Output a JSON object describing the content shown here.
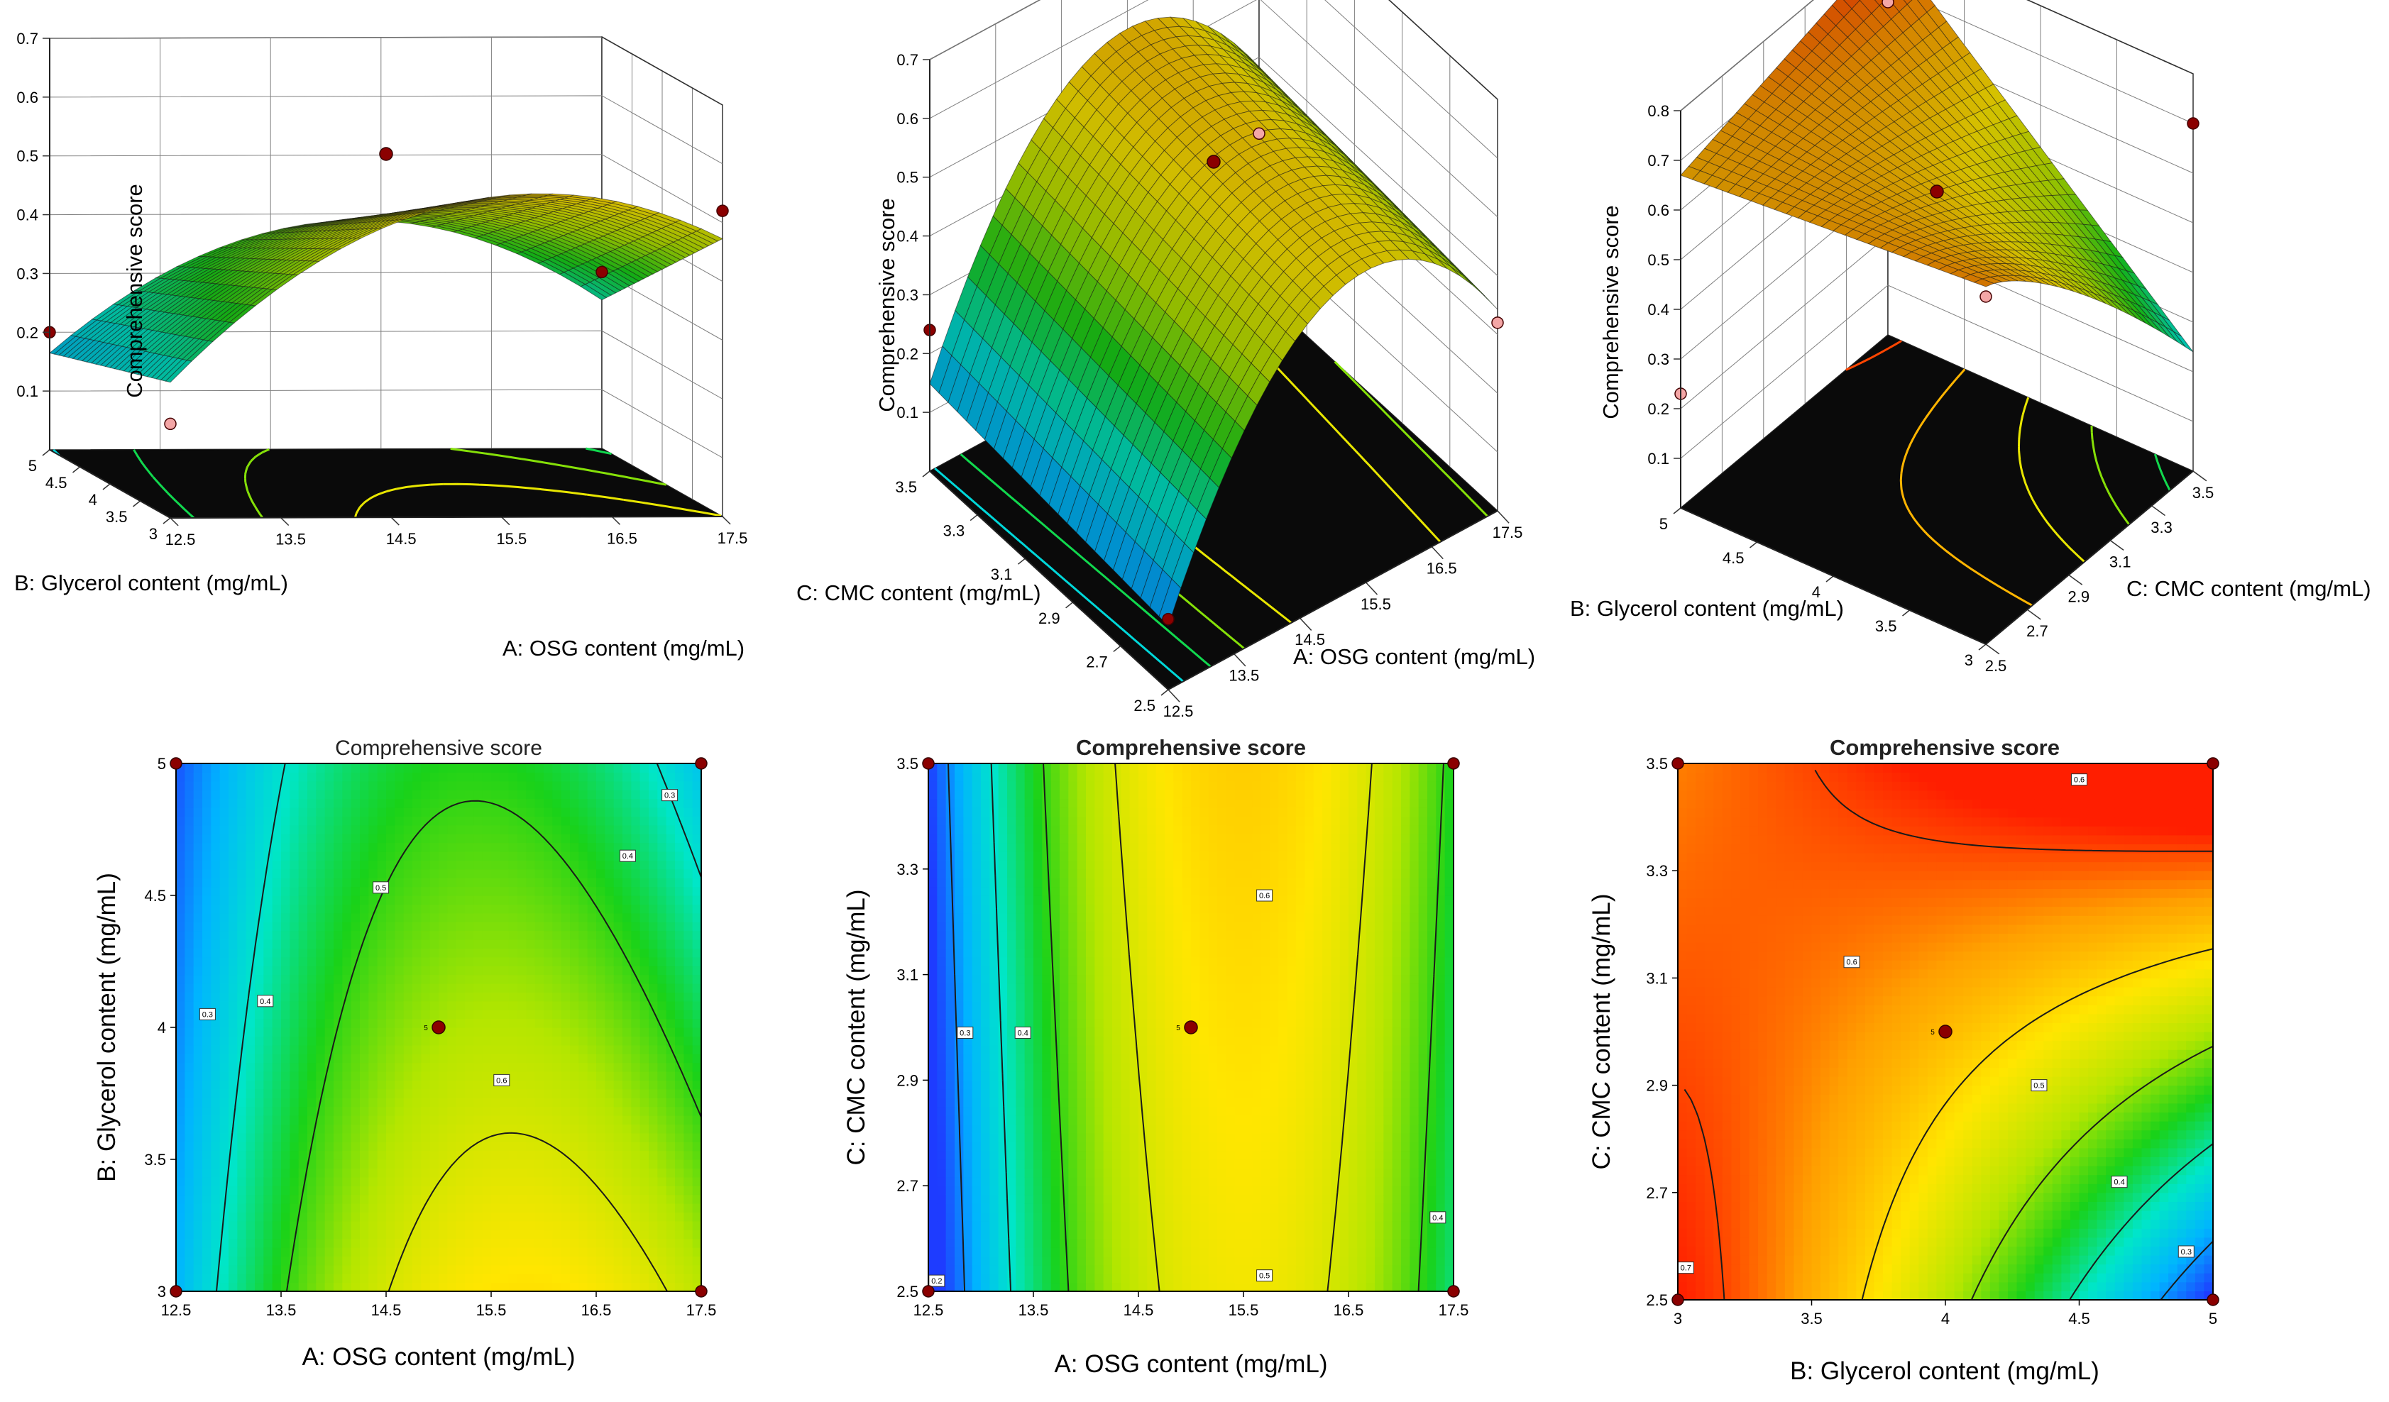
{
  "figure": {
    "colors": {
      "ramp": [
        "#1e3cff",
        "#00b4ff",
        "#00e6c8",
        "#19d219",
        "#b4e600",
        "#ffe600",
        "#ffa000",
        "#ff1e00"
      ],
      "axis": "#000000",
      "grid": "#7f7f7f",
      "contour": "#1a1a1a",
      "design_point": "#8b0000",
      "floor": "#0a0a0a",
      "cube_back": "#ffffff"
    }
  },
  "chart_data": [
    {
      "id": "surface-a-b",
      "type": "surface3d",
      "zlabel": "Comprehensive score",
      "xlabel": "A: OSG content (mg/mL)",
      "ylabel": "B: Glycerol content (mg/mL)",
      "x_ticks": [
        "12.5",
        "13.5",
        "14.5",
        "15.5",
        "16.5",
        "17.5"
      ],
      "y_ticks": [
        "3",
        "3.5",
        "4",
        "4.5",
        "5"
      ],
      "z_ticks": [
        "0.1",
        "0.2",
        "0.3",
        "0.4",
        "0.5",
        "0.6",
        "0.7"
      ],
      "x_range": [
        12.5,
        17.5
      ],
      "y_range": [
        3,
        5
      ],
      "z_range": [
        0,
        0.7
      ],
      "view": "x-axis front-right, y-axis front-left",
      "center_point": {
        "x": 15,
        "y": 4,
        "z": 0.56
      },
      "corner_points": [
        {
          "x": 12.5,
          "y": 3,
          "z": 0.16
        },
        {
          "x": 12.5,
          "y": 5,
          "z": 0.2
        },
        {
          "x": 17.5,
          "y": 3,
          "z": 0.52
        },
        {
          "x": 17.5,
          "y": 5,
          "z": 0.3
        }
      ]
    },
    {
      "id": "surface-a-c",
      "type": "surface3d",
      "zlabel": "Comprehensive score",
      "xlabel": "A: OSG content (mg/mL)",
      "ylabel": "C: CMC content (mg/mL)",
      "x_ticks": [
        "12.5",
        "13.5",
        "14.5",
        "15.5",
        "16.5",
        "17.5"
      ],
      "y_ticks": [
        "2.5",
        "2.7",
        "2.9",
        "3.1",
        "3.3",
        "3.5"
      ],
      "z_ticks": [
        "0.1",
        "0.2",
        "0.3",
        "0.4",
        "0.5",
        "0.6",
        "0.7"
      ],
      "x_range": [
        12.5,
        17.5
      ],
      "y_range": [
        2.5,
        3.5
      ],
      "z_range": [
        0,
        0.7
      ],
      "view": "x-axis front-right, y-axis front-left",
      "center_point": {
        "x": 15,
        "y": 3,
        "z": 0.56
      },
      "corner_points": [
        {
          "x": 12.5,
          "y": 2.5,
          "z": 0.12
        },
        {
          "x": 12.5,
          "y": 3.5,
          "z": 0.24
        },
        {
          "x": 17.5,
          "y": 2.5,
          "z": 0.32
        },
        {
          "x": 17.5,
          "y": 3.5,
          "z": 0.27
        }
      ]
    },
    {
      "id": "surface-b-c",
      "type": "surface3d",
      "zlabel": "Comprehensive score",
      "xlabel": "C: CMC content (mg/mL)",
      "ylabel": "B: Glycerol content (mg/mL)",
      "x_ticks": [
        "2.5",
        "2.7",
        "2.9",
        "3.1",
        "3.3",
        "3.5"
      ],
      "y_ticks": [
        "3",
        "3.5",
        "4",
        "4.5",
        "5"
      ],
      "z_ticks": [
        "0.1",
        "0.2",
        "0.3",
        "0.4",
        "0.5",
        "0.6",
        "0.7",
        "0.8"
      ],
      "x_range": [
        2.5,
        3.5
      ],
      "y_range": [
        3,
        5
      ],
      "z_range": [
        0,
        0.8
      ],
      "view": "x-axis front-right (reversed), y-axis front-left (reversed)",
      "center_point": {
        "x": 3,
        "y": 4,
        "z": 0.6
      },
      "corner_points": [
        {
          "x": 2.5,
          "y": 5,
          "z": 0.23
        },
        {
          "x": 2.5,
          "y": 3,
          "z": 0.7
        },
        {
          "x": 3.5,
          "y": 5,
          "z": 0.67
        },
        {
          "x": 3.5,
          "y": 3,
          "z": 0.7
        }
      ]
    },
    {
      "id": "contour-a-b",
      "type": "contour",
      "title": "Comprehensive score",
      "xlabel": "A: OSG content (mg/mL)",
      "ylabel": "B: Glycerol content (mg/mL)",
      "x_ticks": [
        "12.5",
        "13.5",
        "14.5",
        "15.5",
        "16.5",
        "17.5"
      ],
      "y_ticks": [
        "3",
        "3.5",
        "4",
        "4.5",
        "5"
      ],
      "x_range": [
        12.5,
        17.5
      ],
      "y_range": [
        3,
        5
      ],
      "value_range": [
        0.15,
        0.7
      ],
      "contour_levels": [
        0.3,
        0.4,
        0.5,
        0.6
      ],
      "contour_labels": [
        {
          "text": "0.3",
          "x": 12.8,
          "y": 4.05
        },
        {
          "text": "0.4",
          "x": 13.35,
          "y": 4.1
        },
        {
          "text": "0.5",
          "x": 14.45,
          "y": 4.53
        },
        {
          "text": "0.6",
          "x": 15.6,
          "y": 3.8
        },
        {
          "text": "0.4",
          "x": 16.8,
          "y": 4.65
        },
        {
          "text": "0.3",
          "x": 17.2,
          "y": 4.88
        }
      ],
      "center_label": "5",
      "center_point": {
        "x": 15,
        "y": 4
      },
      "corner_points": [
        {
          "x": 12.5,
          "y": 3
        },
        {
          "x": 12.5,
          "y": 5
        },
        {
          "x": 17.5,
          "y": 3
        },
        {
          "x": 17.5,
          "y": 5
        }
      ]
    },
    {
      "id": "contour-a-c",
      "type": "contour",
      "title": "Comprehensive score",
      "xlabel": "A: OSG content (mg/mL)",
      "ylabel": "C: CMC content (mg/mL)",
      "x_ticks": [
        "12.5",
        "13.5",
        "14.5",
        "15.5",
        "16.5",
        "17.5"
      ],
      "y_ticks": [
        "2.5",
        "2.7",
        "2.9",
        "3.1",
        "3.3",
        "3.5"
      ],
      "x_range": [
        12.5,
        17.5
      ],
      "y_range": [
        2.5,
        3.5
      ],
      "value_range": [
        0.15,
        0.7
      ],
      "contour_levels": [
        0.2,
        0.3,
        0.4,
        0.5,
        0.6
      ],
      "contour_labels": [
        {
          "text": "0.2",
          "x": 12.58,
          "y": 2.52
        },
        {
          "text": "0.3",
          "x": 12.85,
          "y": 2.99
        },
        {
          "text": "0.4",
          "x": 13.4,
          "y": 2.99
        },
        {
          "text": "0.5",
          "x": 15.7,
          "y": 2.53
        },
        {
          "text": "0.6",
          "x": 15.7,
          "y": 3.25
        },
        {
          "text": "0.4",
          "x": 17.35,
          "y": 2.64
        }
      ],
      "center_label": "5",
      "center_point": {
        "x": 15,
        "y": 3
      },
      "corner_points": [
        {
          "x": 12.5,
          "y": 2.5
        },
        {
          "x": 12.5,
          "y": 3.5
        },
        {
          "x": 17.5,
          "y": 2.5
        },
        {
          "x": 17.5,
          "y": 3.5
        }
      ]
    },
    {
      "id": "contour-b-c",
      "type": "contour",
      "title": "Comprehensive score",
      "xlabel": "B: Glycerol content (mg/mL)",
      "ylabel": "C: CMC content (mg/mL)",
      "x_ticks": [
        "3",
        "3.5",
        "4",
        "4.5",
        "5"
      ],
      "y_ticks": [
        "2.5",
        "2.7",
        "2.9",
        "3.1",
        "3.3",
        "3.5"
      ],
      "x_range": [
        3,
        5
      ],
      "y_range": [
        2.5,
        3.5
      ],
      "value_range": [
        0.25,
        0.72
      ],
      "contour_levels": [
        0.3,
        0.4,
        0.5,
        0.6,
        0.7
      ],
      "contour_labels": [
        {
          "text": "0.7",
          "x": 3.03,
          "y": 2.56
        },
        {
          "text": "0.6",
          "x": 3.65,
          "y": 3.13
        },
        {
          "text": "0.6",
          "x": 4.5,
          "y": 3.47
        },
        {
          "text": "0.5",
          "x": 4.35,
          "y": 2.9
        },
        {
          "text": "0.4",
          "x": 4.65,
          "y": 2.72
        },
        {
          "text": "0.3",
          "x": 4.9,
          "y": 2.59
        }
      ],
      "center_label": "5",
      "center_point": {
        "x": 4,
        "y": 3
      },
      "corner_points": [
        {
          "x": 3,
          "y": 2.5
        },
        {
          "x": 3,
          "y": 3.5
        },
        {
          "x": 5,
          "y": 2.5
        },
        {
          "x": 5,
          "y": 3.5
        }
      ]
    }
  ]
}
